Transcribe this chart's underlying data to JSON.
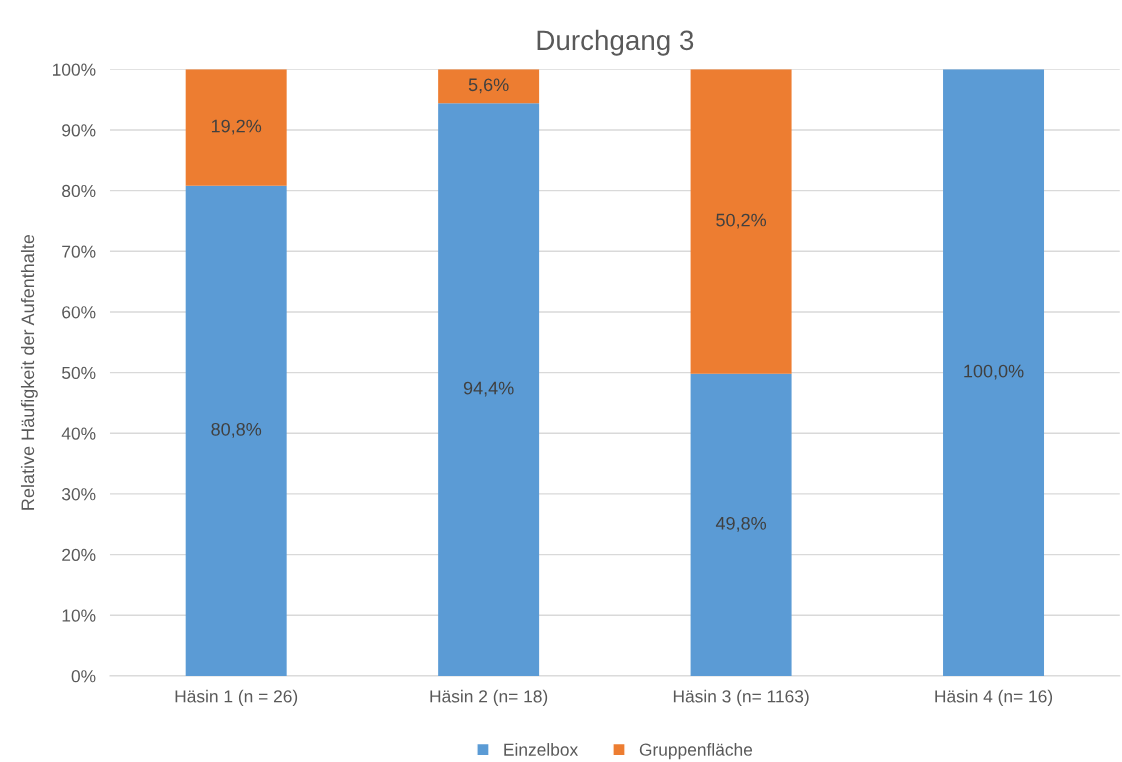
{
  "chart_data": {
    "type": "bar",
    "title": "Durchgang 3",
    "ylabel": "Relative Häufigkeit der Aufenthalte",
    "categories": [
      "Häsin 1 (n = 26)",
      "Häsin 2 (n= 18)",
      "Häsin 3 (n= 1163)",
      "Häsin 4 (n= 16)"
    ],
    "stacked": true,
    "series": [
      {
        "name": "Einzelbox",
        "color": "#5b9bd5",
        "values": [
          80.8,
          94.4,
          49.8,
          100.0
        ],
        "value_labels": [
          "80,8%",
          "94,4%",
          "49,8%",
          "100,0%"
        ]
      },
      {
        "name": "Gruppenfläche",
        "color": "#ed7d31",
        "values": [
          19.2,
          5.6,
          50.2,
          null
        ],
        "value_labels": [
          "19,2%",
          "5,6%",
          "50,2%",
          null
        ]
      }
    ],
    "ylim": [
      0,
      100
    ],
    "yticks": [
      {
        "value": 0,
        "label": "0%"
      },
      {
        "value": 10,
        "label": "10%"
      },
      {
        "value": 20,
        "label": "20%"
      },
      {
        "value": 30,
        "label": "30%"
      },
      {
        "value": 40,
        "label": "40%"
      },
      {
        "value": 50,
        "label": "50%"
      },
      {
        "value": 60,
        "label": "60%"
      },
      {
        "value": 70,
        "label": "70%"
      },
      {
        "value": 80,
        "label": "80%"
      },
      {
        "value": 90,
        "label": "90%"
      },
      {
        "value": 100,
        "label": "100%"
      }
    ],
    "grid": "y",
    "legend": "bottom"
  }
}
